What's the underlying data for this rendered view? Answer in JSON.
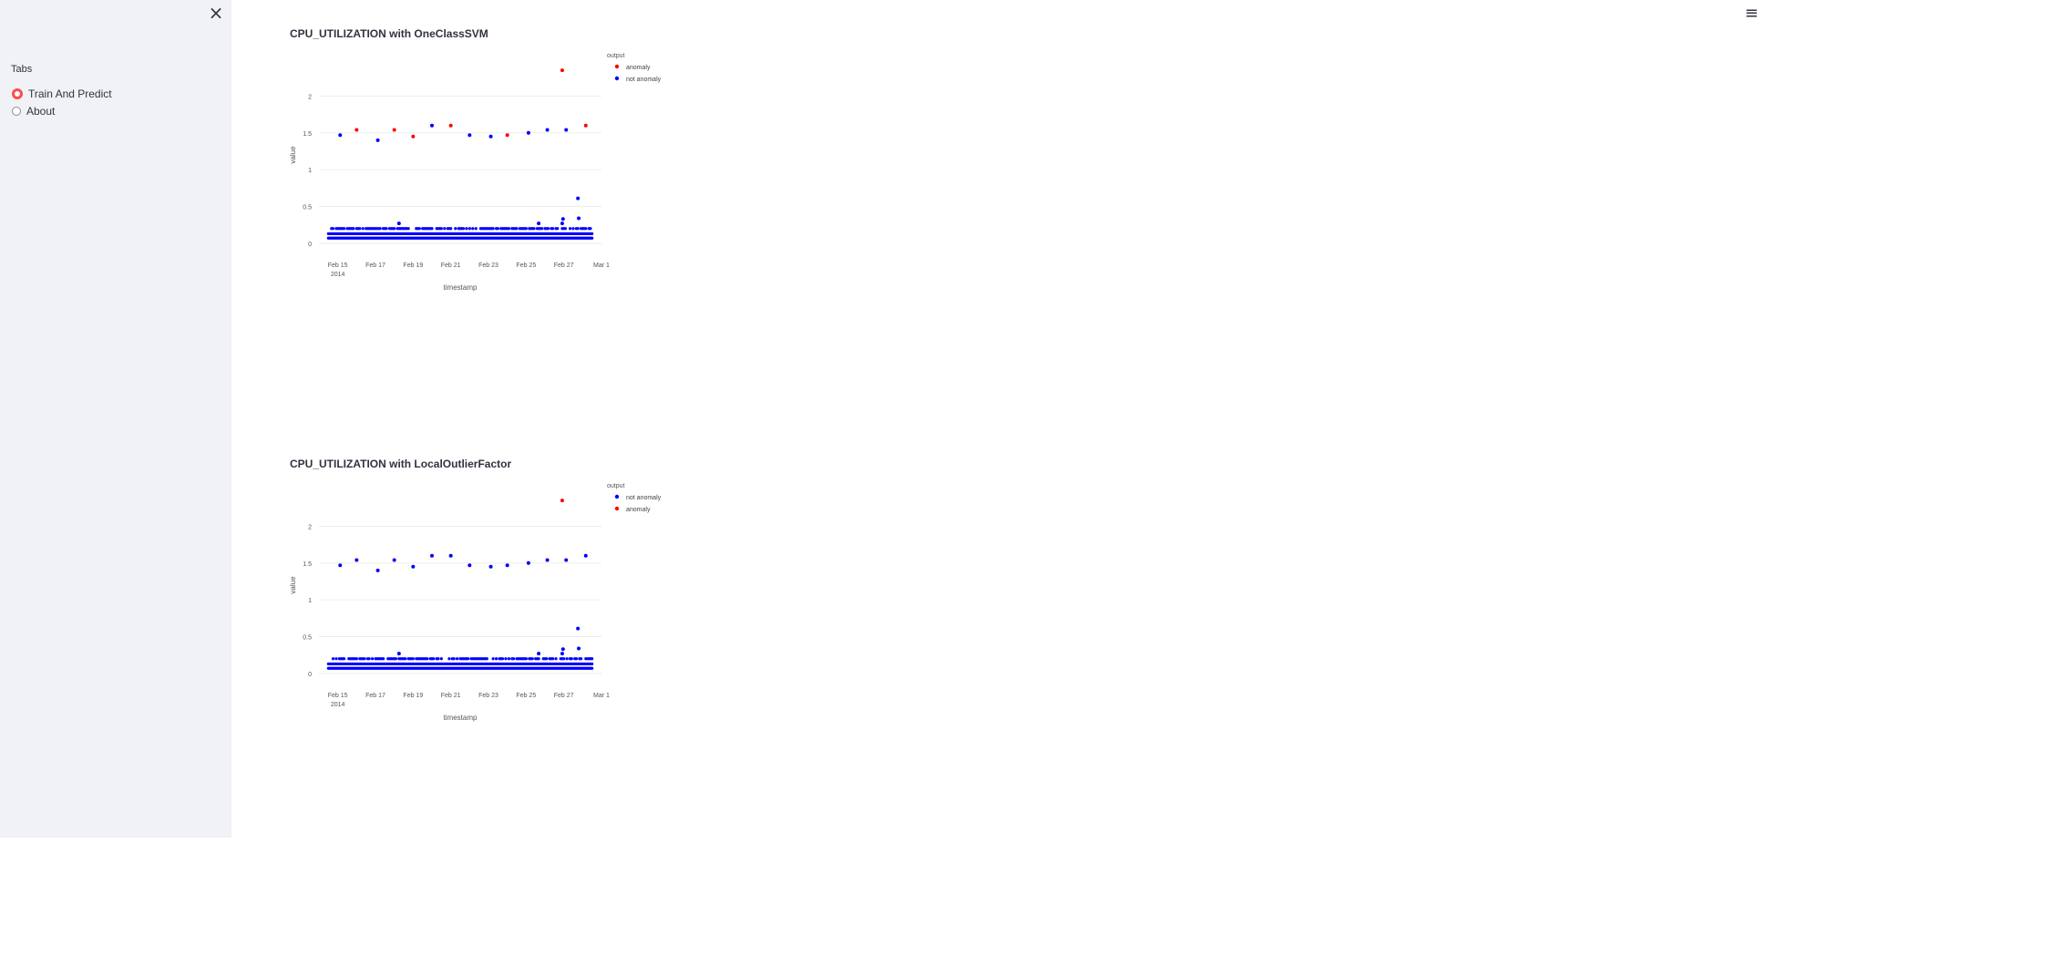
{
  "sidebar": {
    "close_label": "×",
    "radio_label": "Tabs",
    "options": [
      {
        "label": "Train And Predict",
        "selected": true
      },
      {
        "label": "About",
        "selected": false
      }
    ]
  },
  "header": {
    "menu_label": "≡"
  },
  "colors": {
    "accent": "#ff4b4b",
    "anomaly": "#ff0000",
    "not_anomaly": "#0000ff",
    "sidebar_bg": "#f0f2f6"
  },
  "chart_data": [
    {
      "type": "scatter",
      "title": "CPU_UTILIZATION with OneClassSVM",
      "xlabel": "timestamp",
      "ylabel": "value",
      "x_tick_labels": [
        "Feb 15\n2014",
        "Feb 17",
        "Feb 19",
        "Feb 21",
        "Feb 23",
        "Feb 25",
        "Feb 27",
        "Mar 1"
      ],
      "y_tick_labels": [
        "0",
        "0.5",
        "1",
        "1.5",
        "2"
      ],
      "xlim": [
        "2014-02-14",
        "2014-03-01"
      ],
      "ylim": [
        -0.1,
        2.5
      ],
      "legend_title": "output",
      "legend_position": "top-right",
      "series": [
        {
          "name": "anomaly",
          "color": "#ff0000",
          "points": [
            {
              "x": "2014-02-16 00:00",
              "y": 1.54
            },
            {
              "x": "2014-02-18 00:00",
              "y": 1.54
            },
            {
              "x": "2014-02-19 00:00",
              "y": 1.45
            },
            {
              "x": "2014-02-21 00:00",
              "y": 1.6
            },
            {
              "x": "2014-02-24 00:00",
              "y": 1.47
            },
            {
              "x": "2014-02-26 22:00",
              "y": 2.35
            },
            {
              "x": "2014-02-28 04:00",
              "y": 1.6
            }
          ]
        },
        {
          "name": "not anomaly",
          "color": "#0000ff",
          "points": [
            {
              "x": "2014-02-15 03:00",
              "y": 1.47
            },
            {
              "x": "2014-02-17 03:00",
              "y": 1.4
            },
            {
              "x": "2014-02-20 00:00",
              "y": 1.6
            },
            {
              "x": "2014-02-22 00:00",
              "y": 1.47
            },
            {
              "x": "2014-02-23 03:00",
              "y": 1.45
            },
            {
              "x": "2014-02-25 03:00",
              "y": 1.5
            },
            {
              "x": "2014-02-26 03:00",
              "y": 1.54
            },
            {
              "x": "2014-02-27 03:00",
              "y": 1.54
            },
            {
              "x": "2014-02-18 06:00",
              "y": 0.27
            },
            {
              "x": "2014-02-25 16:00",
              "y": 0.27
            },
            {
              "x": "2014-02-26 23:00",
              "y": 0.33
            },
            {
              "x": "2014-02-27 19:00",
              "y": 0.34
            },
            {
              "x": "2014-02-26 22:00",
              "y": 0.27
            },
            {
              "x": "2014-02-27 18:00",
              "y": 0.61
            }
          ]
        }
      ]
    },
    {
      "type": "scatter",
      "title": "CPU_UTILIZATION with LocalOutlierFactor",
      "xlabel": "timestamp",
      "ylabel": "value",
      "x_tick_labels": [
        "Feb 15\n2014",
        "Feb 17",
        "Feb 19",
        "Feb 21",
        "Feb 23",
        "Feb 25",
        "Feb 27",
        "Mar 1"
      ],
      "y_tick_labels": [
        "0",
        "0.5",
        "1",
        "1.5",
        "2"
      ],
      "xlim": [
        "2014-02-14",
        "2014-03-01"
      ],
      "ylim": [
        -0.1,
        2.5
      ],
      "legend_title": "output",
      "legend_position": "top-right",
      "series": [
        {
          "name": "not anomaly",
          "color": "#0000ff",
          "points": [
            {
              "x": "2014-02-15 03:00",
              "y": 1.47
            },
            {
              "x": "2014-02-16 00:00",
              "y": 1.54
            },
            {
              "x": "2014-02-17 03:00",
              "y": 1.4
            },
            {
              "x": "2014-02-18 00:00",
              "y": 1.54
            },
            {
              "x": "2014-02-19 00:00",
              "y": 1.45
            },
            {
              "x": "2014-02-20 00:00",
              "y": 1.6
            },
            {
              "x": "2014-02-21 00:00",
              "y": 1.6
            },
            {
              "x": "2014-02-22 00:00",
              "y": 1.47
            },
            {
              "x": "2014-02-23 03:00",
              "y": 1.45
            },
            {
              "x": "2014-02-24 00:00",
              "y": 1.47
            },
            {
              "x": "2014-02-25 03:00",
              "y": 1.5
            },
            {
              "x": "2014-02-26 03:00",
              "y": 1.54
            },
            {
              "x": "2014-02-27 03:00",
              "y": 1.54
            },
            {
              "x": "2014-02-28 04:00",
              "y": 1.6
            },
            {
              "x": "2014-02-18 06:00",
              "y": 0.27
            },
            {
              "x": "2014-02-25 16:00",
              "y": 0.27
            },
            {
              "x": "2014-02-26 23:00",
              "y": 0.33
            },
            {
              "x": "2014-02-27 19:00",
              "y": 0.34
            },
            {
              "x": "2014-02-26 22:00",
              "y": 0.27
            },
            {
              "x": "2014-02-27 18:00",
              "y": 0.61
            }
          ]
        },
        {
          "name": "anomaly",
          "color": "#ff0000",
          "points": [
            {
              "x": "2014-02-26 22:00",
              "y": 2.35
            }
          ]
        }
      ]
    }
  ]
}
